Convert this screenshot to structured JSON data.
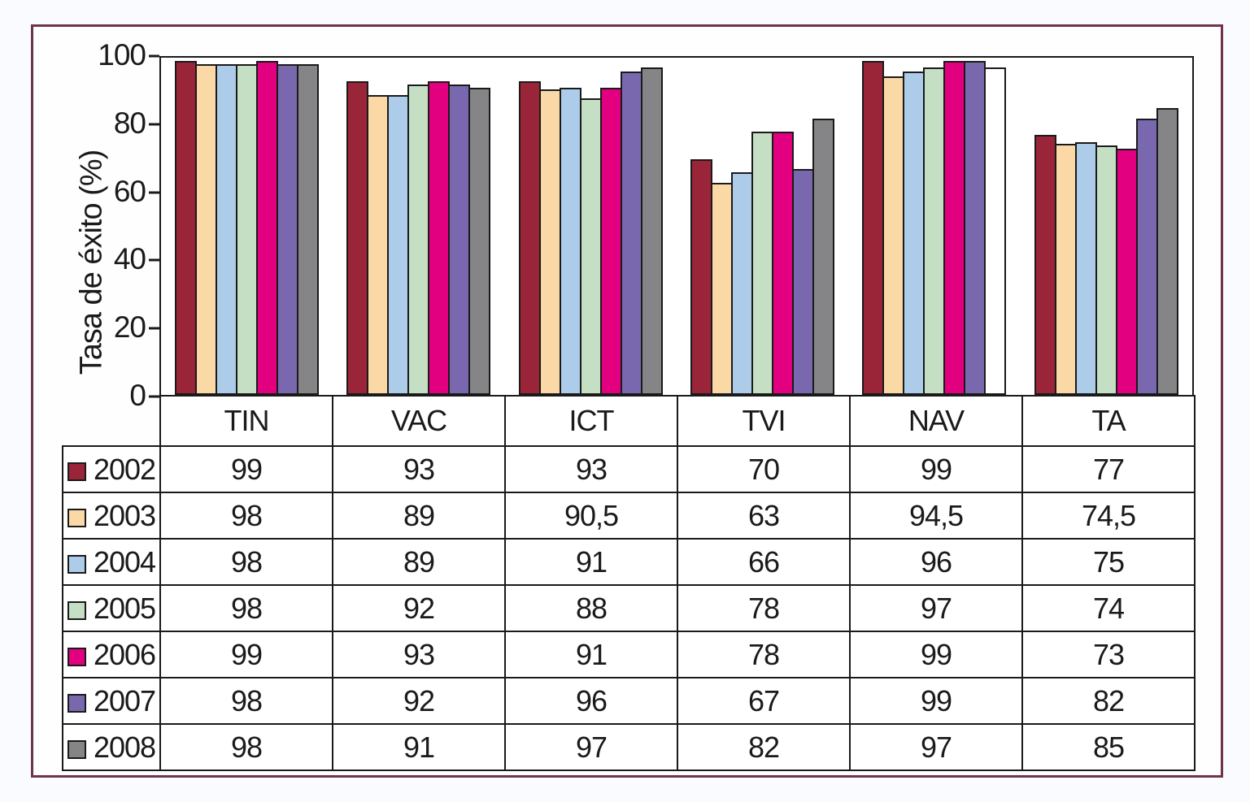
{
  "figure": {
    "frame_border_color": "#6f3447",
    "background_color": "#ffffff",
    "bar_outline_color": "#1a1a1a",
    "table_line_color": "#1a1a1a"
  },
  "chart_data": {
    "type": "bar",
    "title": "",
    "xlabel": "",
    "ylabel": "Tasa de éxito (%)",
    "ylim": [
      0,
      100
    ],
    "yticks": [
      0,
      20,
      40,
      60,
      80,
      100
    ],
    "ytick_labels": [
      "0",
      "20",
      "40",
      "60",
      "80",
      "100"
    ],
    "grid": false,
    "legend_position": "table-left-column",
    "categories": [
      "TIN",
      "VAC",
      "ICT",
      "TVI",
      "NAV",
      "TA"
    ],
    "series": [
      {
        "name": "2002",
        "color": "#9a2539",
        "values": [
          99,
          93,
          93,
          70,
          99,
          77
        ],
        "display_values": [
          "99",
          "93",
          "93",
          "70",
          "99",
          "77"
        ]
      },
      {
        "name": "2003",
        "color": "#fbd9a6",
        "values": [
          98,
          89,
          90.5,
          63,
          94.5,
          74.5
        ],
        "display_values": [
          "98",
          "89",
          "90,5",
          "63",
          "94,5",
          "74,5"
        ]
      },
      {
        "name": "2004",
        "color": "#accce9",
        "values": [
          98,
          89,
          91,
          66,
          96,
          75
        ],
        "display_values": [
          "98",
          "89",
          "91",
          "66",
          "96",
          "75"
        ]
      },
      {
        "name": "2005",
        "color": "#c4dfc3",
        "values": [
          98,
          92,
          88,
          78,
          97,
          74
        ],
        "display_values": [
          "98",
          "92",
          "88",
          "78",
          "97",
          "74"
        ]
      },
      {
        "name": "2006",
        "color": "#e30080",
        "values": [
          99,
          93,
          91,
          78,
          99,
          73
        ],
        "display_values": [
          "99",
          "93",
          "91",
          "78",
          "99",
          "73"
        ]
      },
      {
        "name": "2007",
        "color": "#7968ae",
        "values": [
          98,
          92,
          96,
          67,
          99,
          82
        ],
        "display_values": [
          "98",
          "92",
          "96",
          "67",
          "99",
          "82"
        ]
      },
      {
        "name": "2008",
        "color": "#858587",
        "values": [
          98,
          91,
          97,
          82,
          97,
          85
        ],
        "display_values": [
          "98",
          "91",
          "97",
          "82",
          "97",
          "85"
        ]
      }
    ],
    "bar_fill_exceptions": [
      {
        "series": "2008",
        "category": "NAV",
        "fill": "#ffffff"
      }
    ]
  }
}
